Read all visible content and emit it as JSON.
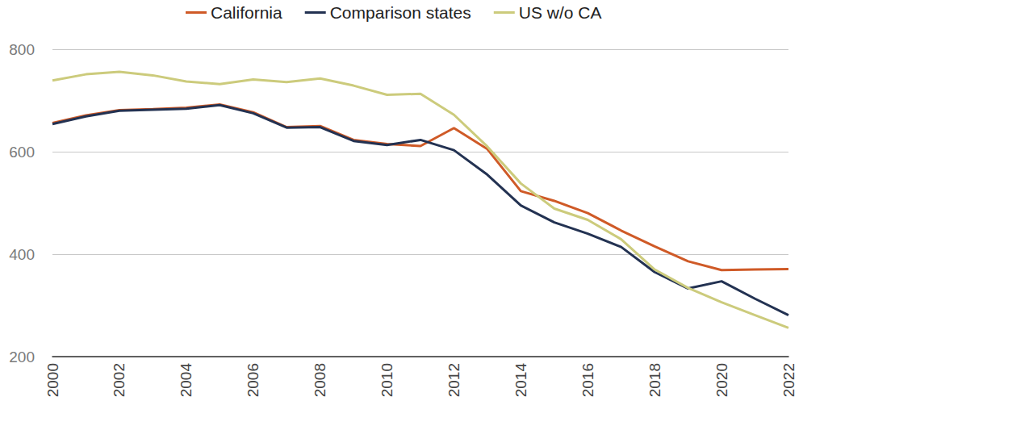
{
  "chart_data": {
    "type": "line",
    "categories": [
      "2000",
      null,
      "2002",
      null,
      "2004",
      null,
      "2006",
      null,
      "2008",
      null,
      "2010",
      null,
      "2012",
      null,
      "2014",
      null,
      "2016",
      null,
      "2018",
      null,
      "2020",
      null,
      "2022"
    ],
    "series": [
      {
        "name": "California",
        "color": "#cf5a27",
        "values": [
          656,
          671,
          681,
          683,
          686,
          692,
          677,
          648,
          650,
          623,
          615,
          611,
          646,
          605,
          523,
          504,
          480,
          446,
          415,
          386,
          369,
          370,
          371
        ]
      },
      {
        "name": "Comparison states",
        "color": "#233252",
        "values": [
          654,
          669,
          680,
          682,
          684,
          691,
          675,
          647,
          648,
          621,
          613,
          623,
          603,
          555,
          495,
          462,
          440,
          414,
          365,
          333,
          347,
          313,
          281
        ]
      },
      {
        "name": "US w/o CA",
        "color": "#cccb7c",
        "values": [
          739,
          751,
          756,
          749,
          737,
          732,
          741,
          736,
          743,
          729,
          711,
          713,
          672,
          610,
          538,
          489,
          467,
          429,
          370,
          334,
          306,
          281,
          256
        ]
      }
    ],
    "ylim": [
      200,
      800
    ],
    "yticks": [
      200,
      400,
      600,
      800
    ],
    "grid": true,
    "legend": "top"
  }
}
